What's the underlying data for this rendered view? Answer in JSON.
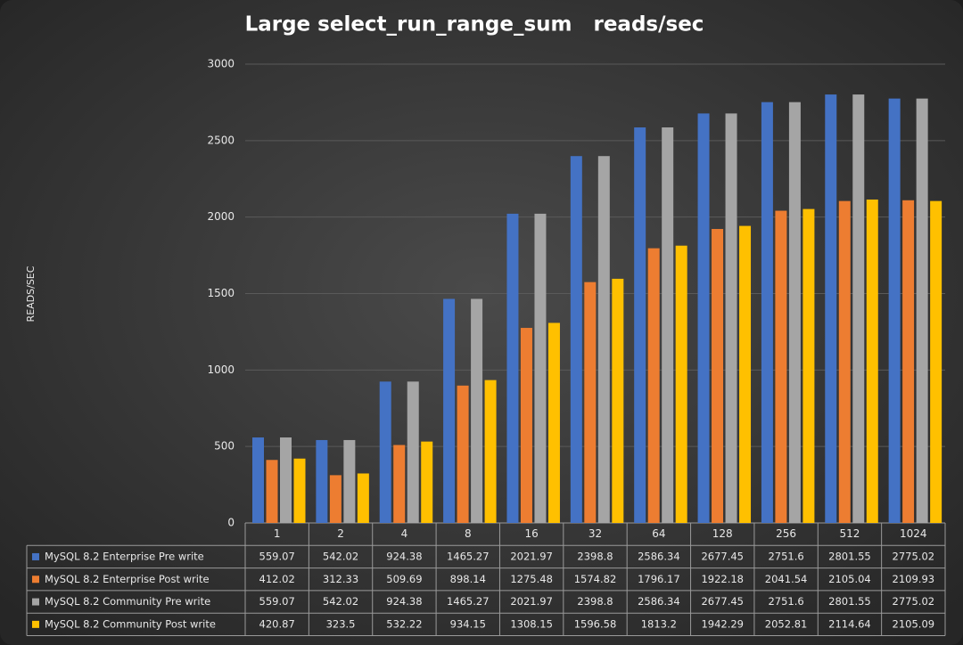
{
  "chart_data": {
    "type": "bar",
    "title": "Large select_run_range_sum   reads/sec",
    "y_label": "READS/SEC",
    "categories": [
      "1",
      "2",
      "4",
      "8",
      "16",
      "32",
      "64",
      "128",
      "256",
      "512",
      "1024"
    ],
    "series": [
      {
        "name": "MySQL 8.2 Enterprise Pre write",
        "color": "#4472c4",
        "values": [
          559.07,
          542.02,
          924.38,
          1465.27,
          2021.97,
          2398.8,
          2586.34,
          2677.45,
          2751.6,
          2801.55,
          2775.02
        ]
      },
      {
        "name": "MySQL 8.2 Enterprise Post write",
        "color": "#ed7d31",
        "values": [
          412.02,
          312.33,
          509.69,
          898.14,
          1275.48,
          1574.82,
          1796.17,
          1922.18,
          2041.54,
          2105.04,
          2109.93
        ]
      },
      {
        "name": "MySQL 8.2 Community Pre write",
        "color": "#a5a5a5",
        "values": [
          559.07,
          542.02,
          924.38,
          1465.27,
          2021.97,
          2398.8,
          2586.34,
          2677.45,
          2751.6,
          2801.55,
          2775.02
        ]
      },
      {
        "name": "MySQL 8.2 Community Post write",
        "color": "#ffc000",
        "values": [
          420.87,
          323.5,
          532.22,
          934.15,
          1308.15,
          1596.58,
          1813.2,
          1942.29,
          2052.81,
          2114.64,
          2105.09
        ]
      }
    ],
    "ylim": [
      0,
      3000
    ],
    "yticks": [
      0,
      500,
      1000,
      1500,
      2000,
      2500,
      3000
    ],
    "grid": true
  }
}
